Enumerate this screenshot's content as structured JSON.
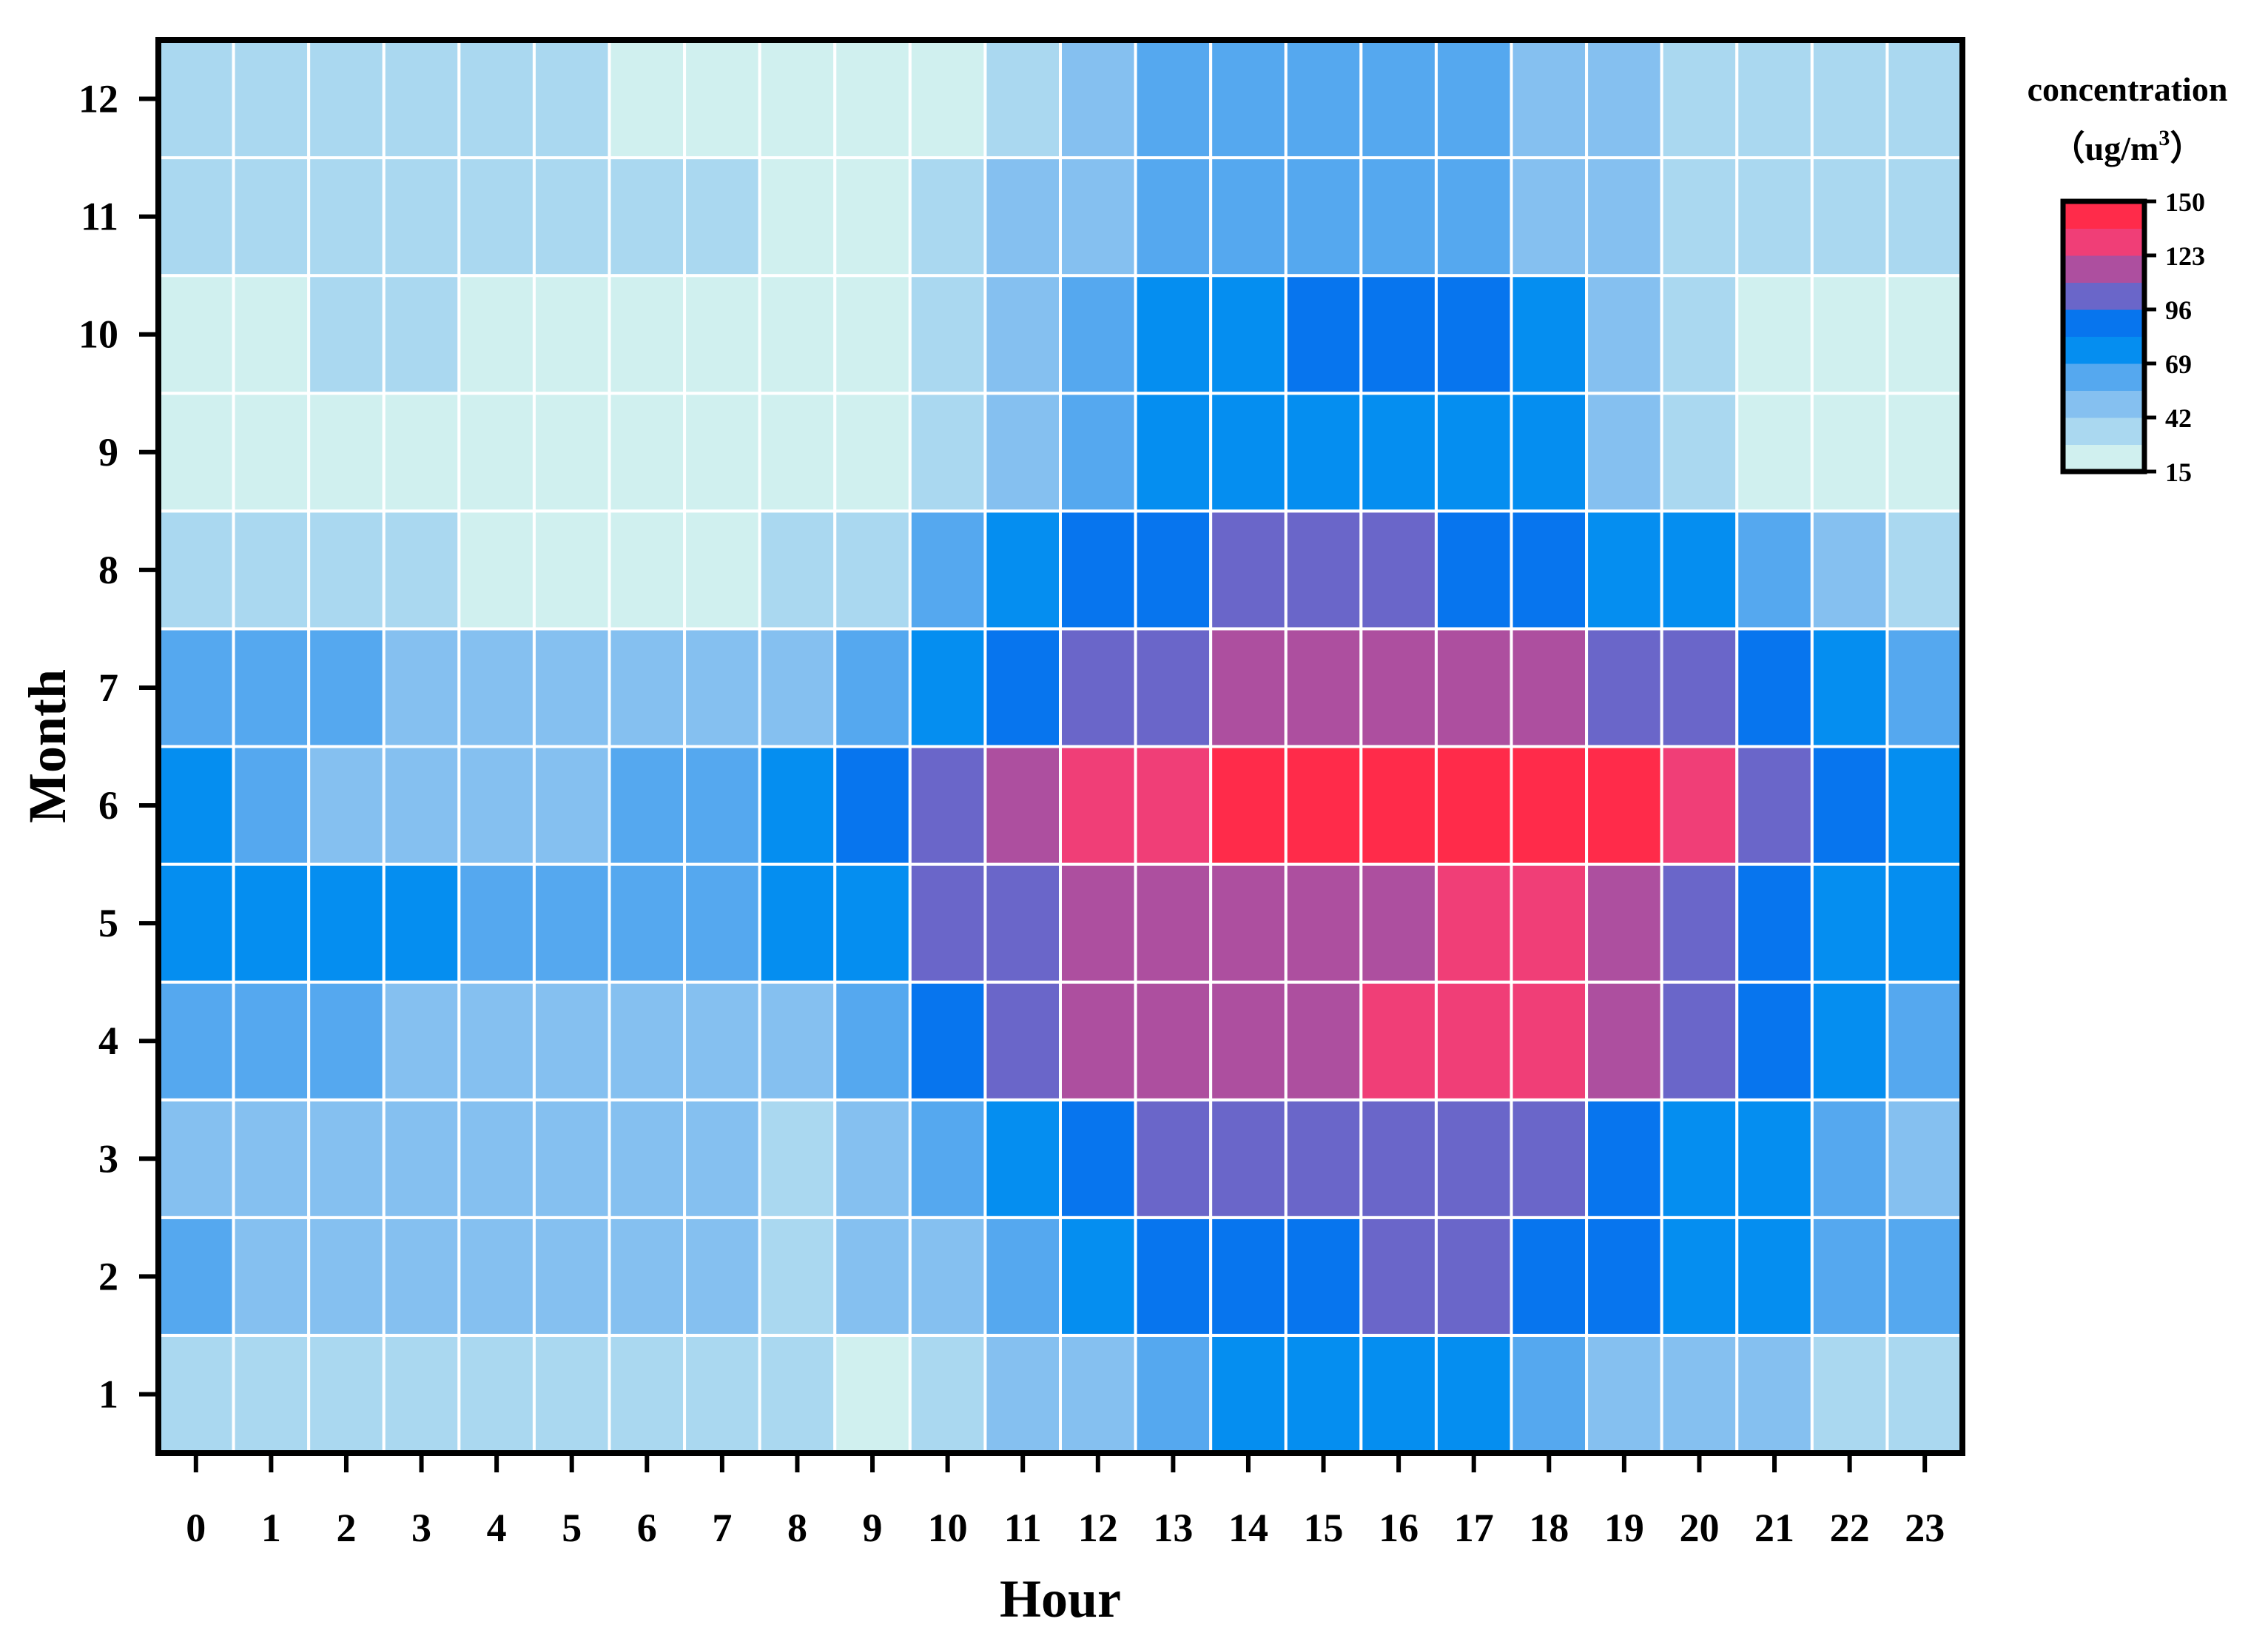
{
  "chart_data": {
    "type": "heatmap",
    "title": "",
    "xlabel": "Hour",
    "ylabel": "Month",
    "x": [
      "0",
      "1",
      "2",
      "3",
      "4",
      "5",
      "6",
      "7",
      "8",
      "9",
      "10",
      "11",
      "12",
      "13",
      "14",
      "15",
      "16",
      "17",
      "18",
      "19",
      "20",
      "21",
      "22",
      "23"
    ],
    "y": [
      "1",
      "2",
      "3",
      "4",
      "5",
      "6",
      "7",
      "8",
      "9",
      "10",
      "11",
      "12"
    ],
    "values": [
      [
        38,
        38,
        38,
        38,
        38,
        38,
        38,
        38,
        38,
        25,
        38,
        50,
        50,
        62,
        72,
        72,
        72,
        72,
        62,
        52,
        52,
        50,
        38,
        38
      ],
      [
        62,
        52,
        52,
        52,
        52,
        52,
        52,
        52,
        40,
        52,
        50,
        62,
        72,
        88,
        88,
        88,
        100,
        100,
        88,
        88,
        72,
        72,
        62,
        62
      ],
      [
        52,
        52,
        52,
        52,
        52,
        52,
        52,
        52,
        40,
        52,
        62,
        72,
        88,
        100,
        100,
        100,
        100,
        100,
        100,
        88,
        72,
        72,
        62,
        52
      ],
      [
        62,
        62,
        62,
        52,
        52,
        52,
        52,
        52,
        50,
        62,
        88,
        100,
        115,
        115,
        115,
        115,
        130,
        130,
        130,
        115,
        100,
        88,
        72,
        62
      ],
      [
        72,
        80,
        80,
        80,
        62,
        62,
        62,
        62,
        72,
        72,
        100,
        100,
        115,
        115,
        115,
        115,
        115,
        130,
        130,
        115,
        100,
        88,
        72,
        72
      ],
      [
        72,
        62,
        52,
        52,
        52,
        52,
        62,
        62,
        72,
        88,
        100,
        115,
        130,
        130,
        145,
        145,
        145,
        145,
        145,
        145,
        130,
        100,
        88,
        72
      ],
      [
        62,
        62,
        62,
        52,
        52,
        52,
        52,
        52,
        52,
        62,
        72,
        88,
        100,
        100,
        115,
        115,
        115,
        115,
        115,
        100,
        100,
        88,
        72,
        62
      ],
      [
        38,
        38,
        38,
        38,
        25,
        25,
        25,
        25,
        38,
        38,
        62,
        72,
        88,
        88,
        100,
        100,
        100,
        88,
        88,
        72,
        72,
        62,
        50,
        38
      ],
      [
        25,
        25,
        25,
        25,
        25,
        25,
        25,
        25,
        25,
        25,
        38,
        50,
        62,
        72,
        72,
        72,
        72,
        72,
        72,
        50,
        38,
        25,
        25,
        25
      ],
      [
        25,
        25,
        38,
        38,
        25,
        25,
        25,
        25,
        25,
        25,
        38,
        50,
        62,
        72,
        72,
        88,
        88,
        88,
        72,
        50,
        38,
        25,
        25,
        25
      ],
      [
        38,
        38,
        38,
        38,
        38,
        38,
        38,
        38,
        25,
        25,
        38,
        50,
        50,
        62,
        62,
        62,
        62,
        62,
        52,
        50,
        38,
        38,
        38,
        38
      ],
      [
        38,
        38,
        38,
        38,
        38,
        38,
        25,
        25,
        25,
        25,
        25,
        38,
        50,
        62,
        62,
        62,
        62,
        62,
        50,
        50,
        38,
        38,
        38,
        38
      ]
    ],
    "colorbar": {
      "title": "concentration",
      "unit_prefix": "（ug/m",
      "unit_sup": "3",
      "unit_suffix": "）",
      "min": 15,
      "max": 150,
      "ticks": [
        "150",
        "123",
        "96",
        "69",
        "42",
        "15"
      ],
      "colors": [
        "#d0f0ef",
        "#aad8f0",
        "#85c0f0",
        "#55a8ef",
        "#058ef0",
        "#0775ee",
        "#6a66c9",
        "#ad4f9f",
        "#f03e77",
        "#ff2b4a"
      ]
    },
    "grid": true,
    "cell_border_color": "#ffffff"
  }
}
